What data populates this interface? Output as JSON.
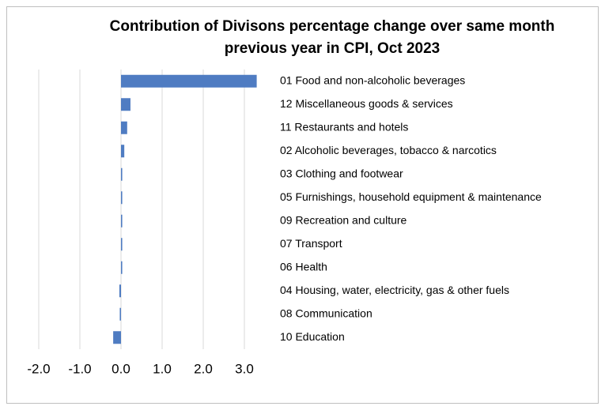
{
  "chart_data": {
    "type": "hbar",
    "title": "Contribution of Divisons percentage change over same month previous year in CPI, Oct 2023",
    "categories": [
      "01 Food and non-alcoholic beverages",
      "12 Miscellaneous goods & services",
      "11 Restaurants and hotels",
      "02 Alcoholic beverages, tobacco & narcotics",
      "03 Clothing and footwear",
      "05 Furnishings, household equipment & maintenance",
      "09 Recreation and culture",
      "07 Transport",
      "06 Health",
      "04 Housing, water, electricity, gas & other fuels",
      "08 Communication",
      "10 Education"
    ],
    "values": [
      3.3,
      0.23,
      0.15,
      0.08,
      0.03,
      0.03,
      0.03,
      0.03,
      0.03,
      -0.04,
      -0.03,
      -0.19
    ],
    "color": "#4f7cc2",
    "xlim": [
      -2.0,
      3.5
    ],
    "xticks": [
      {
        "value": -2,
        "label": "-2.0"
      },
      {
        "value": -1,
        "label": "-1.0"
      },
      {
        "value": 0,
        "label": "0.0"
      },
      {
        "value": 1,
        "label": "1.0"
      },
      {
        "value": 2,
        "label": "2.0"
      },
      {
        "value": 3,
        "label": "3.0"
      }
    ],
    "grid": true
  }
}
